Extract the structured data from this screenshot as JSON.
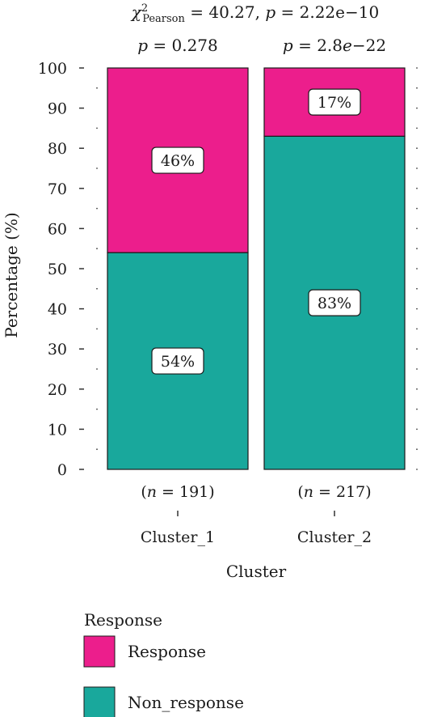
{
  "chart_data": {
    "type": "bar",
    "stacked": true,
    "categories": [
      "Cluster_1",
      "Cluster_2"
    ],
    "series": [
      {
        "name": "Response",
        "values": [
          46,
          17
        ],
        "color": "#EC1E8C"
      },
      {
        "name": "Non_response",
        "values": [
          54,
          83
        ],
        "color": "#19A89C"
      }
    ],
    "bar_labels": [
      [
        "46%",
        "17%"
      ],
      [
        "54%",
        "83%"
      ]
    ],
    "category_stats": [
      "p = 0.278",
      "p = 2.8e−22"
    ],
    "category_n": [
      "(n = 191)",
      "(n = 217)"
    ],
    "title": {
      "chi_symbol": "χ",
      "chi_superscript": "2",
      "chi_subscript": "Pearson",
      "chi_value": " = 40.27, ",
      "p_symbol": "p",
      "p_value": " = 2.22e−10"
    },
    "xlabel": "Cluster",
    "ylabel": "Percentage (%)",
    "ylim": [
      0,
      100
    ],
    "yticks": [
      0,
      10,
      20,
      30,
      40,
      50,
      60,
      70,
      80,
      90,
      100
    ],
    "grid": false,
    "legend": {
      "title": "Response",
      "placement": "bottom",
      "entries": [
        "Response",
        "Non_response"
      ]
    }
  }
}
